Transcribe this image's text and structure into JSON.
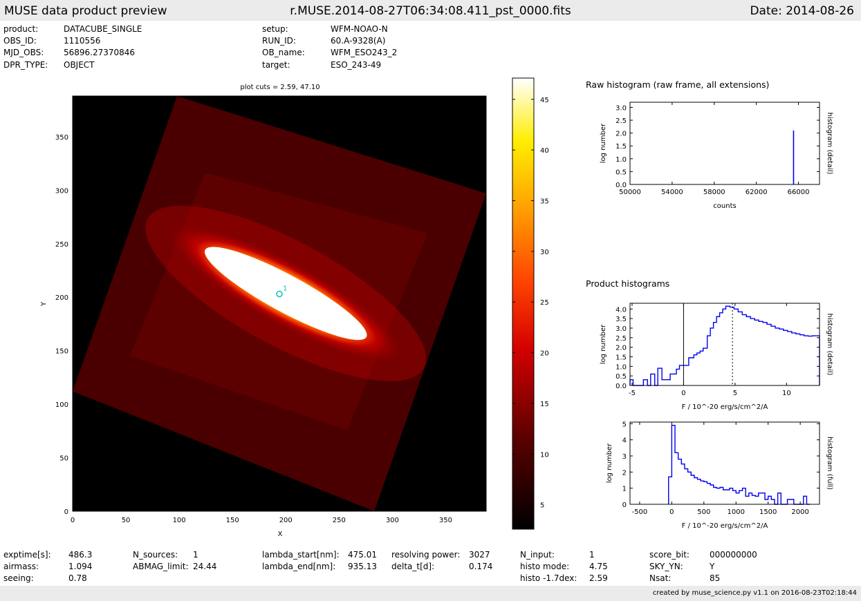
{
  "header": {
    "app_title": "MUSE data product preview",
    "file_name": "r.MUSE.2014-08-27T06:34:08.411_pst_0000.fits",
    "date": "Date: 2014-08-26"
  },
  "info": [
    {
      "label": "product:",
      "value": "DATACUBE_SINGLE"
    },
    {
      "label": "OBS_ID:",
      "value": "1110556"
    },
    {
      "label": "MJD_OBS:",
      "value": "56896.27370846"
    },
    {
      "label": "DPR_TYPE:",
      "value": "OBJECT"
    },
    {
      "label": "setup:",
      "value": "WFM-NOAO-N"
    },
    {
      "label": "RUN_ID:",
      "value": "60.A-9328(A)"
    },
    {
      "label": "OB_name:",
      "value": "WFM_ESO243_2"
    },
    {
      "label": "target:",
      "value": "ESO_243-49"
    }
  ],
  "stats": [
    {
      "label": "exptime[s]:",
      "value": "486.3"
    },
    {
      "label": "airmass:",
      "value": "1.094"
    },
    {
      "label": "seeing:",
      "value": "0.78"
    },
    {
      "label": "N_sources:",
      "value": "1"
    },
    {
      "label": "ABMAG_limit:",
      "value": "24.44"
    },
    {
      "label": "lambda_start[nm]:",
      "value": "475.01"
    },
    {
      "label": "lambda_end[nm]:",
      "value": "935.13"
    },
    {
      "label": "resolving power:",
      "value": "3027"
    },
    {
      "label": "delta_t[d]:",
      "value": "0.174"
    },
    {
      "label": "N_input:",
      "value": "1"
    },
    {
      "label": "histo mode:",
      "value": "4.75"
    },
    {
      "label": "histo -1.7dex:",
      "value": "2.59"
    },
    {
      "label": "score_bit:",
      "value": "000000000"
    },
    {
      "label": "SKY_YN:",
      "value": "Y"
    },
    {
      "label": "Nsat:",
      "value": "85"
    }
  ],
  "footer": {
    "created": "created by muse_science.py v1.1 on 2016-08-23T02:18:44"
  },
  "colors": {
    "hist_line": "#0000ee",
    "marker": "#00c0c0",
    "cmap": [
      "#000000",
      "#5a0000",
      "#c00000",
      "#ff3300",
      "#ff9900",
      "#ffee00",
      "#ffffff"
    ]
  },
  "chart_data": [
    {
      "type": "heatmap",
      "title": "plot cuts = 2.59, 47.10",
      "xlabel": "X",
      "ylabel": "Y",
      "xlim": [
        0,
        388
      ],
      "ylim": [
        0,
        388
      ],
      "x_ticks": [
        0,
        50,
        100,
        150,
        200,
        250,
        300,
        350
      ],
      "y_ticks": [
        0,
        50,
        100,
        150,
        200,
        250,
        300,
        350
      ],
      "colorbar": {
        "range": [
          2.59,
          47.1
        ],
        "ticks": [
          5,
          10,
          15,
          20,
          25,
          30,
          35,
          40,
          45
        ]
      },
      "field_corners": [
        [
          0,
          112
        ],
        [
          98,
          388
        ],
        [
          388,
          297
        ],
        [
          283,
          0
        ]
      ],
      "galaxy_axis": [
        [
          110,
          252
        ],
        [
          290,
          155
        ]
      ],
      "sources": [
        {
          "id": "1",
          "x": 194,
          "y": 203
        }
      ]
    },
    {
      "type": "line",
      "title": "Raw histogram (raw frame, all extensions)",
      "xlabel": "counts",
      "ylabel": "log number",
      "y2label": "histogram (detail)",
      "xlim": [
        50000,
        68000
      ],
      "ylim": [
        0,
        3.2
      ],
      "x_ticks": [
        50000,
        54000,
        58000,
        62000,
        66000
      ],
      "y_ticks": [
        0.0,
        0.5,
        1.0,
        1.5,
        2.0,
        2.5,
        3.0
      ],
      "y_tick_labels": [
        "0.0",
        "0.5",
        "1.0",
        "1.5",
        "2.0",
        "2.5",
        "3.0"
      ],
      "spikes": [
        {
          "x": 65535,
          "y": 2.1
        }
      ]
    },
    {
      "type": "line",
      "section_title": "Product histograms",
      "xlabel": "F / 10^-20 erg/s/cm^2/A",
      "ylabel": "log number",
      "y2label": "histogram (detail)",
      "xlim": [
        -5.2,
        13.2
      ],
      "ylim": [
        0,
        4.3
      ],
      "x_ticks": [
        -5,
        0,
        5,
        10
      ],
      "y_ticks": [
        0.0,
        0.5,
        1.0,
        1.5,
        2.0,
        2.5,
        3.0,
        3.5,
        4.0
      ],
      "y_tick_labels": [
        "0.0",
        "0.5",
        "1.0",
        "1.5",
        "2.0",
        "2.5",
        "3.0",
        "3.5",
        "4.0"
      ],
      "vlines": [
        {
          "x": 0,
          "style": "solid"
        },
        {
          "x": 4.75,
          "style": "dotted"
        }
      ],
      "bin_edges": [
        -5.2,
        -4.9,
        -3.9,
        -3.5,
        -3.2,
        -2.8,
        -2.5,
        -2.1,
        -1.3,
        -0.7,
        -0.4,
        0.5,
        1.0,
        1.3,
        1.6,
        1.9,
        2.3,
        2.6,
        2.9,
        3.2,
        3.5,
        3.8,
        4.1,
        4.5,
        4.9,
        5.3,
        5.7,
        6.1,
        6.5,
        6.9,
        7.3,
        7.7,
        8.1,
        8.5,
        8.9,
        9.3,
        9.7,
        10.1,
        10.5,
        10.9,
        11.3,
        11.7,
        12.1,
        12.5,
        13.2
      ],
      "values": [
        0.3,
        0.0,
        0.3,
        0.0,
        0.6,
        0.0,
        0.9,
        0.3,
        0.6,
        0.85,
        1.05,
        1.45,
        1.6,
        1.7,
        1.8,
        1.95,
        2.6,
        3.0,
        3.3,
        3.6,
        3.8,
        4.0,
        4.15,
        4.1,
        4.0,
        3.85,
        3.7,
        3.6,
        3.5,
        3.42,
        3.35,
        3.3,
        3.2,
        3.1,
        3.0,
        2.95,
        2.88,
        2.82,
        2.75,
        2.7,
        2.65,
        2.6,
        2.58,
        2.6
      ]
    },
    {
      "type": "line",
      "xlabel": "F / 10^-20 erg/s/cm^2/A",
      "ylabel": "log number",
      "y2label": "histogram (full)",
      "xlim": [
        -650,
        2300
      ],
      "ylim": [
        0,
        5.1
      ],
      "x_ticks": [
        -500,
        0,
        500,
        1000,
        1500,
        2000
      ],
      "y_ticks": [
        0,
        1,
        2,
        3,
        4,
        5
      ],
      "y_tick_labels": [
        "0",
        "1",
        "2",
        "3",
        "4",
        "5"
      ],
      "bin_edges": [
        -50,
        0,
        50,
        100,
        150,
        200,
        250,
        300,
        350,
        400,
        450,
        500,
        550,
        600,
        650,
        700,
        750,
        800,
        850,
        900,
        950,
        1000,
        1050,
        1100,
        1150,
        1200,
        1250,
        1300,
        1350,
        1400,
        1450,
        1500,
        1550,
        1600,
        1650,
        1700,
        1750,
        1800,
        1850,
        1900,
        1950,
        2000,
        2050,
        2100,
        2150
      ],
      "values": [
        1.7,
        4.9,
        3.2,
        2.8,
        2.5,
        2.2,
        2.0,
        1.8,
        1.65,
        1.55,
        1.45,
        1.4,
        1.3,
        1.2,
        1.05,
        1.0,
        1.05,
        0.9,
        0.9,
        1.0,
        0.85,
        0.7,
        0.85,
        1.0,
        0.5,
        0.7,
        0.55,
        0.5,
        0.7,
        0.7,
        0.3,
        0.5,
        0.3,
        0.0,
        0.7,
        0.0,
        0.0,
        0.3,
        0.3,
        0.0,
        0.0,
        0.0,
        0.5,
        0.0
      ]
    }
  ]
}
